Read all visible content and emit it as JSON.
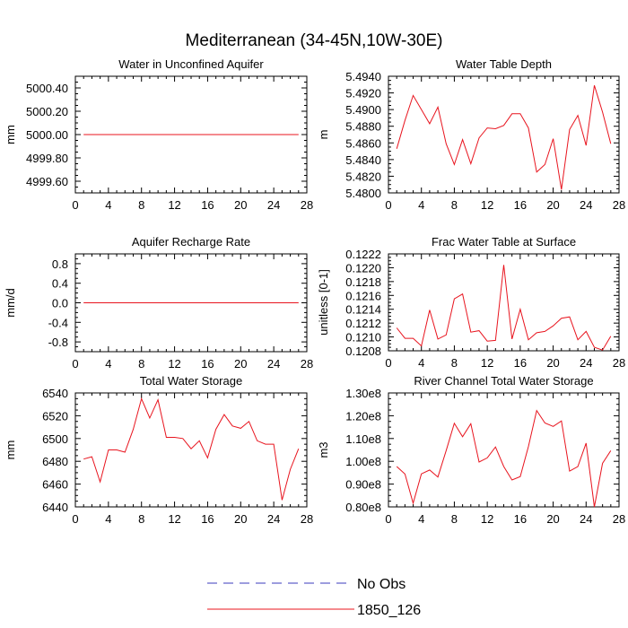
{
  "title": "Mediterranean (34-45N,10W-30E)",
  "colors": {
    "model_line": "#e8141e",
    "obs_line": "#3b3bbd",
    "axis": "#000000"
  },
  "legend": [
    {
      "label": "No Obs",
      "style": "dashed",
      "color": "#3b3bbd"
    },
    {
      "label": "1850_126",
      "style": "solid",
      "color": "#e8141e"
    }
  ],
  "chart_data": [
    {
      "type": "line",
      "title": "Water in Unconfined Aquifer",
      "ylabel": "mm",
      "xlim": [
        0,
        28
      ],
      "xticks": [
        "0",
        "4",
        "8",
        "12",
        "16",
        "20",
        "24",
        "28"
      ],
      "ylim": [
        4999.5,
        5000.5
      ],
      "yticks": [
        4999.6,
        4999.8,
        5000.0,
        5000.2,
        5000.4
      ],
      "ytick_labels": [
        "4999.60",
        "4999.80",
        "5000.00",
        "5000.20",
        "5000.40"
      ],
      "x": [
        1,
        2,
        3,
        4,
        5,
        6,
        7,
        8,
        9,
        10,
        11,
        12,
        13,
        14,
        15,
        16,
        17,
        18,
        19,
        20,
        21,
        22,
        23,
        24,
        25,
        26,
        27
      ],
      "series": [
        {
          "name": "1850_126",
          "values": [
            5000,
            5000,
            5000,
            5000,
            5000,
            5000,
            5000,
            5000,
            5000,
            5000,
            5000,
            5000,
            5000,
            5000,
            5000,
            5000,
            5000,
            5000,
            5000,
            5000,
            5000,
            5000,
            5000,
            5000,
            5000,
            5000,
            5000
          ]
        }
      ]
    },
    {
      "type": "line",
      "title": "Water Table Depth",
      "ylabel": "m",
      "xlim": [
        0,
        28
      ],
      "xticks": [
        "0",
        "4",
        "8",
        "12",
        "16",
        "20",
        "24",
        "28"
      ],
      "ylim": [
        5.48,
        5.494
      ],
      "yticks": [
        5.48,
        5.482,
        5.484,
        5.486,
        5.488,
        5.49,
        5.492,
        5.494
      ],
      "ytick_labels": [
        "5.4800",
        "5.4820",
        "5.4840",
        "5.4860",
        "5.4880",
        "5.4900",
        "5.4920",
        "5.4940"
      ],
      "x": [
        1,
        2,
        3,
        4,
        5,
        6,
        7,
        8,
        9,
        10,
        11,
        12,
        13,
        14,
        15,
        16,
        17,
        18,
        19,
        20,
        21,
        22,
        23,
        24,
        25,
        26,
        27
      ],
      "series": [
        {
          "name": "1850_126",
          "values": [
            5.4853,
            5.4887,
            5.4917,
            5.49,
            5.4883,
            5.4903,
            5.4859,
            5.4834,
            5.4864,
            5.4835,
            5.4866,
            5.4878,
            5.4877,
            5.4881,
            5.4895,
            5.4895,
            5.4878,
            5.4825,
            5.4834,
            5.4865,
            5.4804,
            5.4876,
            5.4893,
            5.4857,
            5.4929,
            5.4897,
            5.4859
          ]
        }
      ]
    },
    {
      "type": "line",
      "title": "Aquifer Recharge Rate",
      "ylabel": "mm/d",
      "xlim": [
        0,
        28
      ],
      "xticks": [
        "0",
        "4",
        "8",
        "12",
        "16",
        "20",
        "24",
        "28"
      ],
      "ylim": [
        -1.0,
        1.0
      ],
      "yticks": [
        -0.8,
        -0.4,
        0.0,
        0.4,
        0.8
      ],
      "ytick_labels": [
        "-0.8",
        "-0.4",
        "0.0",
        "0.4",
        "0.8"
      ],
      "x": [
        1,
        2,
        3,
        4,
        5,
        6,
        7,
        8,
        9,
        10,
        11,
        12,
        13,
        14,
        15,
        16,
        17,
        18,
        19,
        20,
        21,
        22,
        23,
        24,
        25,
        26,
        27
      ],
      "series": [
        {
          "name": "1850_126",
          "values": [
            0,
            0,
            0,
            0,
            0,
            0,
            0,
            0,
            0,
            0,
            0,
            0,
            0,
            0,
            0,
            0,
            0,
            0,
            0,
            0,
            0,
            0,
            0,
            0,
            0,
            0,
            0
          ]
        }
      ]
    },
    {
      "type": "line",
      "title": "Frac Water Table at Surface",
      "ylabel": "unitless [0-1]",
      "xlim": [
        0,
        28
      ],
      "xticks": [
        "0",
        "4",
        "8",
        "12",
        "16",
        "20",
        "24",
        "28"
      ],
      "ylim": [
        0.1208,
        0.1222
      ],
      "yticks": [
        0.1208,
        0.121,
        0.1212,
        0.1214,
        0.1216,
        0.1218,
        0.122,
        0.1222
      ],
      "ytick_labels": [
        "0.1208",
        "0.1210",
        "0.1212",
        "0.1214",
        "0.1216",
        "0.1218",
        "0.1220",
        "0.1222"
      ],
      "x": [
        1,
        2,
        3,
        4,
        5,
        6,
        7,
        8,
        9,
        10,
        11,
        12,
        13,
        14,
        15,
        16,
        17,
        18,
        19,
        20,
        21,
        22,
        23,
        24,
        25,
        26,
        27
      ],
      "series": [
        {
          "name": "1850_126",
          "values": [
            0.12113,
            0.12098,
            0.12098,
            0.12087,
            0.12139,
            0.12097,
            0.12103,
            0.12155,
            0.12162,
            0.12107,
            0.12109,
            0.12094,
            0.12095,
            0.12204,
            0.12097,
            0.1214,
            0.12096,
            0.12106,
            0.12108,
            0.12116,
            0.12127,
            0.12129,
            0.12096,
            0.12108,
            0.12085,
            0.12081,
            0.12101
          ]
        }
      ]
    },
    {
      "type": "line",
      "title": "Total Water Storage",
      "ylabel": "mm",
      "xlim": [
        0,
        28
      ],
      "xticks": [
        "0",
        "4",
        "8",
        "12",
        "16",
        "20",
        "24",
        "28"
      ],
      "ylim": [
        6440,
        6540
      ],
      "yticks": [
        6440,
        6460,
        6480,
        6500,
        6520,
        6540
      ],
      "ytick_labels": [
        "6440",
        "6460",
        "6480",
        "6500",
        "6520",
        "6540"
      ],
      "x": [
        1,
        2,
        3,
        4,
        5,
        6,
        7,
        8,
        9,
        10,
        11,
        12,
        13,
        14,
        15,
        16,
        17,
        18,
        19,
        20,
        21,
        22,
        23,
        24,
        25,
        26,
        27
      ],
      "series": [
        {
          "name": "1850_126",
          "values": [
            6482,
            6484,
            6462,
            6490,
            6490,
            6488,
            6508,
            6535,
            6518,
            6534,
            6501,
            6501,
            6500,
            6491,
            6498,
            6483,
            6508,
            6521,
            6511,
            6509,
            6515,
            6498,
            6495,
            6495,
            6446,
            6473,
            6491
          ]
        }
      ]
    },
    {
      "type": "line",
      "title": "River Channel Total Water Storage",
      "ylabel": "m3",
      "xlim": [
        0,
        28
      ],
      "xticks": [
        "0",
        "4",
        "8",
        "12",
        "16",
        "20",
        "24",
        "28"
      ],
      "ylim": [
        0.8,
        1.3
      ],
      "yticks": [
        0.8,
        0.9,
        1.0,
        1.1,
        1.2,
        1.3
      ],
      "ytick_labels": [
        "0.80e8",
        "0.90e8",
        "1.00e8",
        "1.10e8",
        "1.20e8",
        "1.30e8"
      ],
      "x": [
        1,
        2,
        3,
        4,
        5,
        6,
        7,
        8,
        9,
        10,
        11,
        12,
        13,
        14,
        15,
        16,
        17,
        18,
        19,
        20,
        21,
        22,
        23,
        24,
        25,
        26,
        27
      ],
      "series": [
        {
          "name": "1850_126",
          "values": [
            0.977,
            0.944,
            0.816,
            0.945,
            0.962,
            0.931,
            1.047,
            1.167,
            1.108,
            1.165,
            0.997,
            1.015,
            1.063,
            0.977,
            0.918,
            0.933,
            1.065,
            1.223,
            1.168,
            1.153,
            1.177,
            0.957,
            0.977,
            1.08,
            0.8,
            0.991,
            1.047
          ]
        }
      ]
    }
  ]
}
